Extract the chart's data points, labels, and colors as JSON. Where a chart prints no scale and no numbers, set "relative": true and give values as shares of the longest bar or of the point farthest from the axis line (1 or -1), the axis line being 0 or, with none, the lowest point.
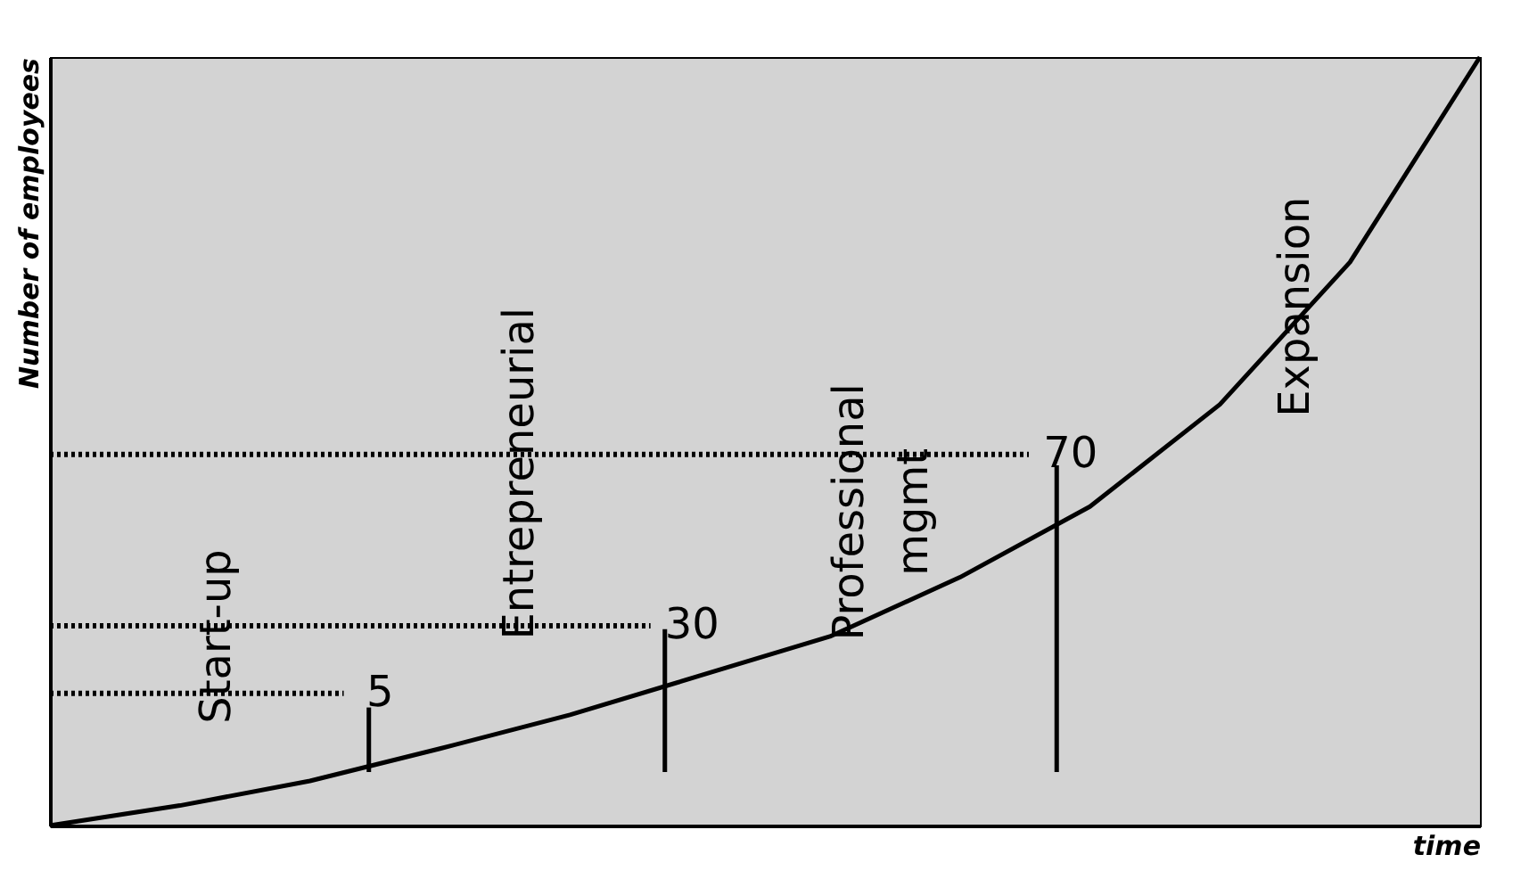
{
  "chart_data": {
    "type": "line",
    "relative": true,
    "xlabel": "time",
    "ylabel": "Number of employees",
    "categories": [
      null,
      null,
      null,
      null,
      null,
      null,
      null,
      null,
      null,
      null,
      null,
      null
    ],
    "series": [
      {
        "color": "#000000",
        "values": [
          0,
          0.026,
          0.058,
          0.1,
          0.144,
          0.195,
          0.246,
          0.323,
          0.415,
          0.548,
          0.733,
          1
        ]
      }
    ],
    "ref_lines": [
      {
        "axis": "y",
        "value": 0.172,
        "line_style": "dotted"
      },
      {
        "axis": "y",
        "value": 0.26,
        "line_style": "dotted"
      },
      {
        "axis": "y",
        "value": 0.483,
        "line_style": "dotted"
      }
    ],
    "annotations": [
      "Start-up",
      "Entrepreneurial",
      "Professional mgmt",
      "Expansion",
      "5",
      "30",
      "70"
    ]
  }
}
